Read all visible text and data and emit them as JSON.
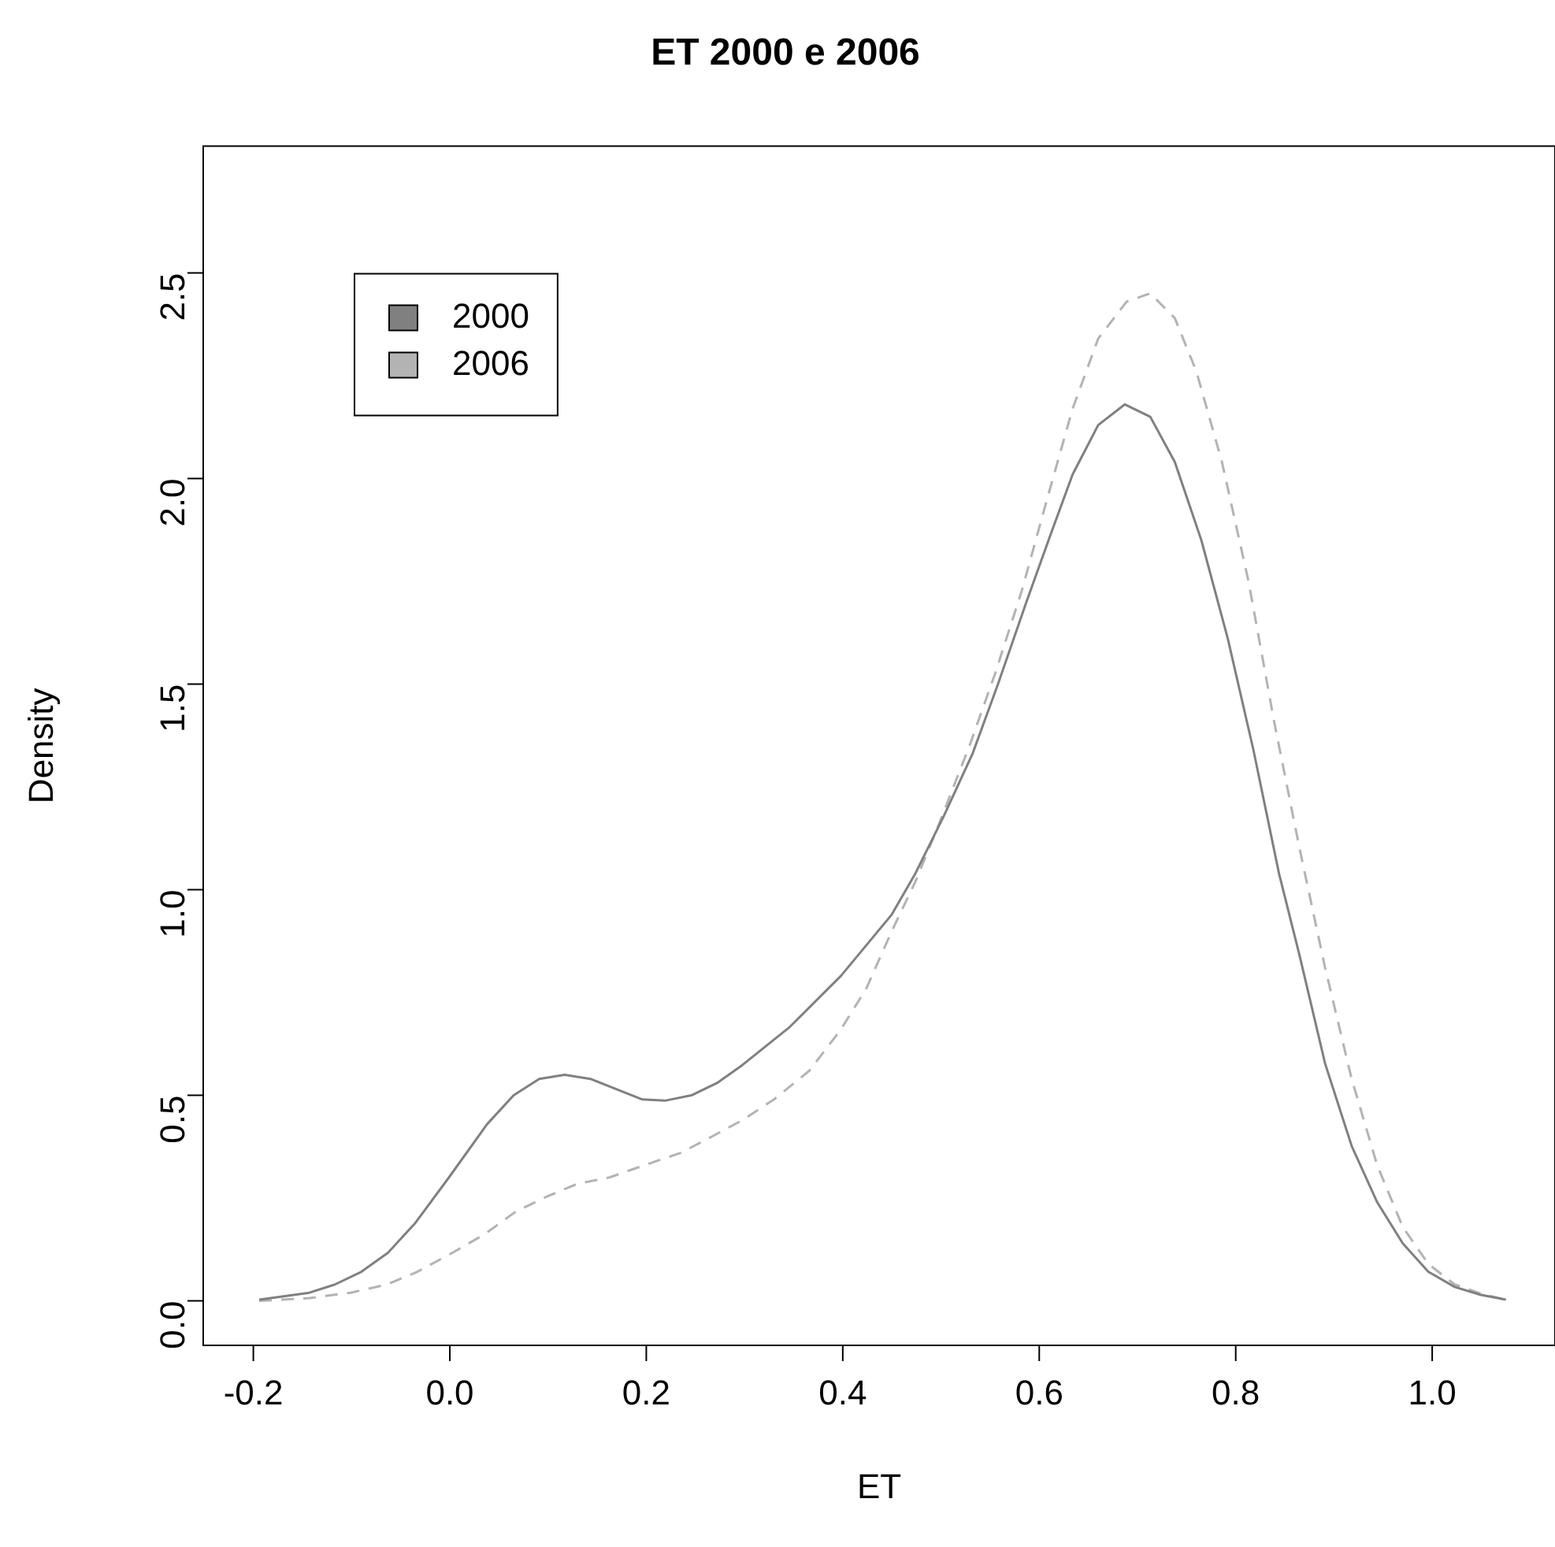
{
  "chart_data": {
    "type": "line",
    "title": "ET 2000 e 2006",
    "xlabel": "ET",
    "ylabel": "Density",
    "xlim": [
      -0.251,
      1.125
    ],
    "ylim": [
      -0.108,
      2.808
    ],
    "xticks": [
      -0.2,
      {
        "value": 0,
        "label": "0.0"
      },
      0.2,
      0.4,
      0.6,
      0.8,
      {
        "value": 1,
        "label": "1.0"
      }
    ],
    "yticks": [
      {
        "value": 0,
        "label": "0.0"
      },
      0.5,
      {
        "value": 1,
        "label": "1.0"
      },
      1.5,
      {
        "value": 2,
        "label": "2.0"
      },
      2.5
    ],
    "grid": false,
    "legend": "top left",
    "marker": "none",
    "series": [
      {
        "name": "2000",
        "color": "#808080",
        "line_style": "solid",
        "x": [
          -0.194,
          -0.143,
          -0.117,
          -0.09,
          -0.063,
          -0.035,
          -0.001,
          0.038,
          0.065,
          0.091,
          0.117,
          0.143,
          0.196,
          0.219,
          0.246,
          0.272,
          0.298,
          0.345,
          0.398,
          0.45,
          0.474,
          0.503,
          0.532,
          0.558,
          0.587,
          0.611,
          0.634,
          0.66,
          0.687,
          0.713,
          0.738,
          0.765,
          0.792,
          0.818,
          0.844,
          0.865,
          0.891,
          0.918,
          0.944,
          0.97,
          0.996,
          1.023,
          1.049,
          1.075
        ],
        "values": [
          0.003,
          0.02,
          0.04,
          0.071,
          0.117,
          0.19,
          0.3,
          0.43,
          0.5,
          0.54,
          0.55,
          0.54,
          0.49,
          0.487,
          0.5,
          0.53,
          0.574,
          0.664,
          0.79,
          0.94,
          1.04,
          1.18,
          1.33,
          1.5,
          1.7,
          1.86,
          2.01,
          2.13,
          2.18,
          2.15,
          2.04,
          1.85,
          1.61,
          1.34,
          1.04,
          0.84,
          0.577,
          0.377,
          0.24,
          0.14,
          0.071,
          0.034,
          0.015,
          0.003
        ]
      },
      {
        "name": "2006",
        "color": "#b3b3b3",
        "line_style": "dashed",
        "x": [
          -0.194,
          -0.143,
          -0.101,
          -0.064,
          -0.033,
          0.004,
          0.036,
          0.067,
          0.099,
          0.13,
          0.162,
          0.198,
          0.235,
          0.267,
          0.298,
          0.33,
          0.366,
          0.398,
          0.424,
          0.45,
          0.474,
          0.498,
          0.529,
          0.555,
          0.582,
          0.608,
          0.634,
          0.66,
          0.689,
          0.713,
          0.738,
          0.76,
          0.786,
          0.813,
          0.839,
          0.865,
          0.891,
          0.918,
          0.944,
          0.97,
          0.996,
          1.023,
          1.049,
          1.075
        ],
        "values": [
          0,
          0.007,
          0.02,
          0.04,
          0.071,
          0.119,
          0.163,
          0.217,
          0.254,
          0.285,
          0.3,
          0.33,
          0.36,
          0.4,
          0.44,
          0.49,
          0.56,
          0.66,
          0.76,
          0.9,
          1.02,
          1.16,
          1.35,
          1.525,
          1.725,
          1.95,
          2.17,
          2.34,
          2.43,
          2.45,
          2.39,
          2.26,
          2.04,
          1.75,
          1.41,
          1.1,
          0.81,
          0.54,
          0.33,
          0.18,
          0.09,
          0.04,
          0.018,
          0.003
        ]
      }
    ]
  }
}
